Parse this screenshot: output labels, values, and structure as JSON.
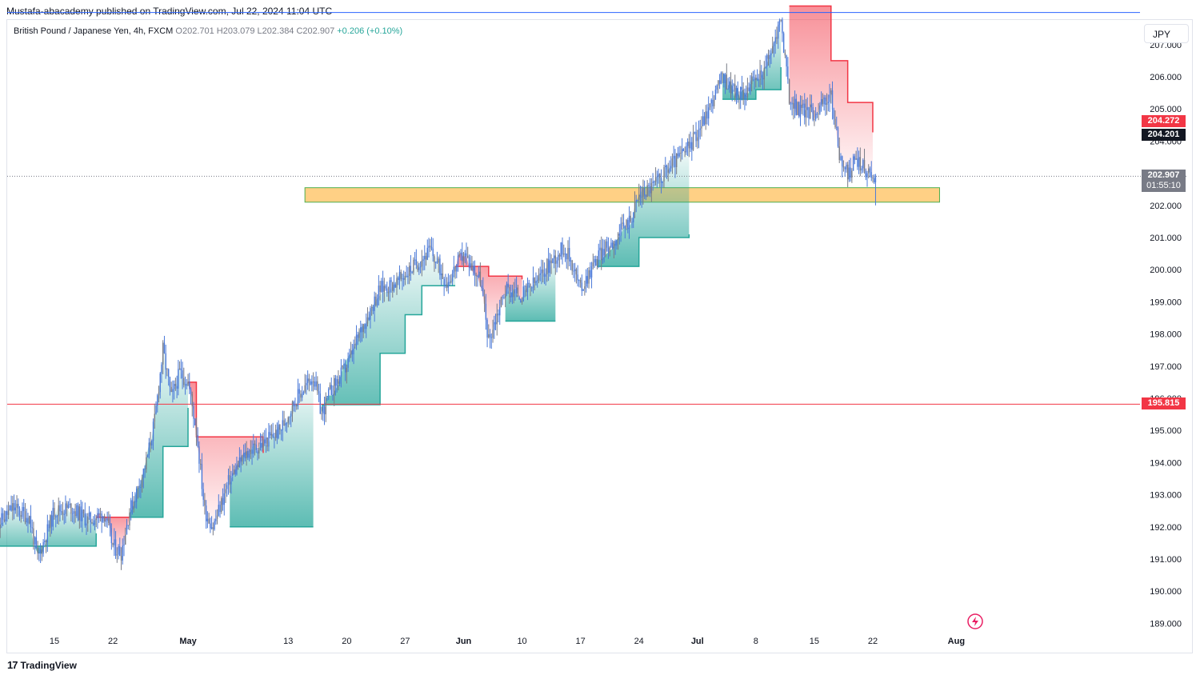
{
  "header": {
    "publish_line": "Mustafa-abacademy published on TradingView.com, Jul 22, 2024 11:04 UTC"
  },
  "legend": {
    "symbol": "British Pound / Japanese Yen, 4h, FXCM",
    "ohlc": "O202.701 H203.079 L202.384 C202.907",
    "change": "+0.206 (+0.10%)"
  },
  "currency_button": "JPY",
  "footer": {
    "brand": "TradingView"
  },
  "price_tags": {
    "upper_band": "204.272",
    "upper_band_color": "#f23645",
    "reference": "204.201",
    "reference_color": "#131722",
    "last_price": "202.907",
    "countdown": "01:55:10",
    "last_price_color": "#787b86",
    "horizontal_line": "195.815",
    "horizontal_line_color": "#f23645"
  },
  "colors": {
    "candle": "#4a79d8",
    "candle_alt": "#787b86",
    "up_band": "#26a69a",
    "down_band": "#f23645",
    "zone_fill": "#ffc870",
    "zone_border": "#4caf50",
    "top_line": "#2962ff"
  },
  "chart_data": {
    "type": "candlestick",
    "symbol": "GBPJPY",
    "timeframe": "4h",
    "y_axis": {
      "ticks": [
        189.0,
        190.0,
        191.0,
        192.0,
        193.0,
        194.0,
        195.0,
        196.0,
        197.0,
        198.0,
        199.0,
        200.0,
        201.0,
        202.0,
        203.0,
        204.0,
        205.0,
        206.0,
        207.0
      ],
      "ylim": [
        188.5,
        208.5
      ],
      "position": "right",
      "decimals": 3
    },
    "x_axis": {
      "ticks": [
        {
          "label": "15",
          "date": "2024-04-15",
          "bold": false
        },
        {
          "label": "22",
          "date": "2024-04-22",
          "bold": false
        },
        {
          "label": "May",
          "date": "2024-05-01",
          "bold": true
        },
        {
          "label": "13",
          "date": "2024-05-13",
          "bold": false
        },
        {
          "label": "20",
          "date": "2024-05-20",
          "bold": false
        },
        {
          "label": "27",
          "date": "2024-05-27",
          "bold": false
        },
        {
          "label": "Jun",
          "date": "2024-06-03",
          "bold": true
        },
        {
          "label": "10",
          "date": "2024-06-10",
          "bold": false
        },
        {
          "label": "17",
          "date": "2024-06-17",
          "bold": false
        },
        {
          "label": "24",
          "date": "2024-06-24",
          "bold": false
        },
        {
          "label": "Jul",
          "date": "2024-07-01",
          "bold": true
        },
        {
          "label": "8",
          "date": "2024-07-08",
          "bold": false
        },
        {
          "label": "15",
          "date": "2024-07-15",
          "bold": false
        },
        {
          "label": "22",
          "date": "2024-07-22",
          "bold": false
        },
        {
          "label": "Aug",
          "date": "2024-08-01",
          "bold": true
        }
      ]
    },
    "price_path": [
      [
        "2024-04-08",
        192.0
      ],
      [
        "2024-04-10",
        192.6
      ],
      [
        "2024-04-12",
        192.3
      ],
      [
        "2024-04-13",
        191.0
      ],
      [
        "2024-04-15",
        192.5
      ],
      [
        "2024-04-17",
        192.6
      ],
      [
        "2024-04-19",
        192.2
      ],
      [
        "2024-04-21",
        192.4
      ],
      [
        "2024-04-22",
        191.4
      ],
      [
        "2024-04-23",
        191.2
      ],
      [
        "2024-04-24",
        192.5
      ],
      [
        "2024-04-25",
        193.2
      ],
      [
        "2024-04-26",
        194.0
      ],
      [
        "2024-04-27",
        195.3
      ],
      [
        "2024-04-28",
        197.5
      ],
      [
        "2024-04-29",
        196.0
      ],
      [
        "2024-04-30",
        196.8
      ],
      [
        "2024-05-01",
        196.5
      ],
      [
        "2024-05-02",
        195.0
      ],
      [
        "2024-05-03",
        192.5
      ],
      [
        "2024-05-04",
        192.0
      ],
      [
        "2024-05-06",
        193.5
      ],
      [
        "2024-05-08",
        194.3
      ],
      [
        "2024-05-10",
        194.6
      ],
      [
        "2024-05-12",
        195.0
      ],
      [
        "2024-05-14",
        196.0
      ],
      [
        "2024-05-16",
        196.7
      ],
      [
        "2024-05-17",
        195.5
      ],
      [
        "2024-05-18",
        196.2
      ],
      [
        "2024-05-20",
        197.0
      ],
      [
        "2024-05-22",
        198.3
      ],
      [
        "2024-05-24",
        199.4
      ],
      [
        "2024-05-26",
        199.6
      ],
      [
        "2024-05-28",
        200.1
      ],
      [
        "2024-05-30",
        200.6
      ],
      [
        "2024-06-01",
        199.6
      ],
      [
        "2024-06-03",
        200.5
      ],
      [
        "2024-06-05",
        199.7
      ],
      [
        "2024-06-06",
        197.8
      ],
      [
        "2024-06-08",
        199.4
      ],
      [
        "2024-06-10",
        199.2
      ],
      [
        "2024-06-12",
        199.7
      ],
      [
        "2024-06-13",
        200.1
      ],
      [
        "2024-06-15",
        200.7
      ],
      [
        "2024-06-16",
        200.2
      ],
      [
        "2024-06-17",
        199.4
      ],
      [
        "2024-06-19",
        200.4
      ],
      [
        "2024-06-21",
        200.9
      ],
      [
        "2024-06-23",
        201.6
      ],
      [
        "2024-06-24",
        202.3
      ],
      [
        "2024-06-26",
        202.7
      ],
      [
        "2024-06-28",
        203.3
      ],
      [
        "2024-06-30",
        203.8
      ],
      [
        "2024-07-02",
        204.8
      ],
      [
        "2024-07-04",
        206.0
      ],
      [
        "2024-07-06",
        205.4
      ],
      [
        "2024-07-08",
        205.9
      ],
      [
        "2024-07-09",
        206.2
      ],
      [
        "2024-07-10",
        206.9
      ],
      [
        "2024-07-11",
        207.8
      ],
      [
        "2024-07-12",
        205.3
      ],
      [
        "2024-07-13",
        205.0
      ],
      [
        "2024-07-15",
        204.9
      ],
      [
        "2024-07-17",
        205.4
      ],
      [
        "2024-07-18",
        203.6
      ],
      [
        "2024-07-19",
        202.9
      ],
      [
        "2024-07-20",
        203.5
      ],
      [
        "2024-07-21",
        203.1
      ],
      [
        "2024-07-22",
        202.9
      ]
    ],
    "supertrend": {
      "up_segments": [
        [
          [
            "2024-04-08",
            191.4
          ],
          [
            "2024-04-20",
            191.8
          ]
        ],
        [
          [
            "2024-04-24",
            192.3
          ],
          [
            "2024-04-28",
            194.5
          ],
          [
            "2024-05-01",
            195.7
          ]
        ],
        [
          [
            "2024-05-06",
            192.0
          ],
          [
            "2024-05-16",
            192.0
          ]
        ],
        [
          [
            "2024-05-17",
            195.8
          ],
          [
            "2024-05-24",
            197.4
          ],
          [
            "2024-05-27",
            198.6
          ],
          [
            "2024-05-29",
            199.5
          ],
          [
            "2024-06-02",
            199.5
          ]
        ],
        [
          [
            "2024-06-08",
            198.4
          ],
          [
            "2024-06-14",
            198.4
          ]
        ],
        [
          [
            "2024-06-19",
            200.1
          ],
          [
            "2024-06-23",
            200.1
          ],
          [
            "2024-06-24",
            201.0
          ],
          [
            "2024-06-30",
            201.1
          ]
        ],
        [
          [
            "2024-07-04",
            205.3
          ],
          [
            "2024-07-08",
            205.6
          ],
          [
            "2024-07-11",
            206.3
          ]
        ]
      ],
      "down_segments": [
        [
          [
            "2024-04-20",
            192.3
          ],
          [
            "2024-04-24",
            192.3
          ]
        ],
        [
          [
            "2024-05-01",
            196.5
          ],
          [
            "2024-05-02",
            194.8
          ],
          [
            "2024-05-08",
            194.8
          ],
          [
            "2024-05-10",
            194.3
          ]
        ],
        [
          [
            "2024-06-02",
            200.1
          ],
          [
            "2024-06-06",
            199.8
          ],
          [
            "2024-06-10",
            199.7
          ]
        ],
        [
          [
            "2024-07-12",
            208.2
          ],
          [
            "2024-07-16",
            208.2
          ],
          [
            "2024-07-17",
            206.5
          ],
          [
            "2024-07-19",
            205.2
          ],
          [
            "2024-07-21",
            205.2
          ],
          [
            "2024-07-22",
            204.272
          ]
        ]
      ]
    },
    "support_zone": {
      "from_date": "2024-05-15",
      "to_date": "2024-07-30",
      "low": 202.1,
      "high": 202.55
    },
    "horizontal_lines": [
      {
        "price": 195.815,
        "color": "#f23645"
      },
      {
        "price": 208.0,
        "color": "#2962ff"
      }
    ],
    "last_price_line": 202.907
  }
}
